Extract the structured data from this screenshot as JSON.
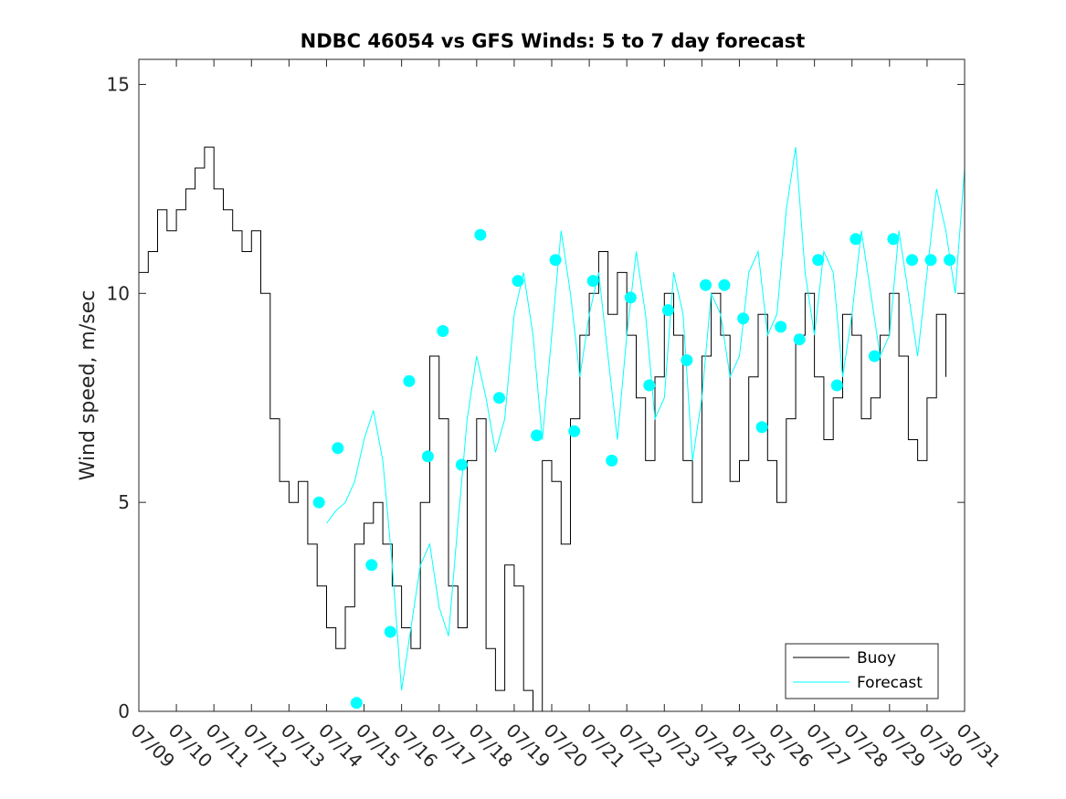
{
  "chart_data": {
    "type": "line",
    "title": "NDBC 46054 vs GFS Winds: 5 to 7 day forecast",
    "xlabel": "",
    "ylabel": "Wind speed, m/sec",
    "xlim": [
      0,
      22
    ],
    "ylim": [
      0,
      15.6
    ],
    "yticks": [
      0,
      5,
      10,
      15
    ],
    "ytick_labels": [
      "0",
      "5",
      "10",
      "15"
    ],
    "xtick_labels": [
      "07/09",
      "07/10",
      "07/11",
      "07/12",
      "07/13",
      "07/14",
      "07/15",
      "07/16",
      "07/17",
      "07/18",
      "07/19",
      "07/20",
      "07/21",
      "07/22",
      "07/23",
      "07/24",
      "07/25",
      "07/26",
      "07/27",
      "07/28",
      "07/29",
      "07/30",
      "07/31"
    ],
    "grid": false,
    "legend_position": "bottom-right",
    "colors": {
      "buoy": "#000000",
      "forecast": "#00ffff",
      "markers": "#00ffff"
    },
    "series": [
      {
        "name": "Buoy",
        "x": [
          0.0,
          0.25,
          0.5,
          0.75,
          1.0,
          1.25,
          1.5,
          1.75,
          2.0,
          2.25,
          2.5,
          2.75,
          3.0,
          3.25,
          3.5,
          3.75,
          4.0,
          4.25,
          4.5,
          4.75,
          5.0,
          5.25,
          5.5,
          5.75,
          6.0,
          6.25,
          6.5,
          6.75,
          7.0,
          7.25,
          7.5,
          7.75,
          8.0,
          8.25,
          8.5,
          8.75,
          9.0,
          9.25,
          9.5,
          9.75,
          10.0,
          10.25,
          10.5,
          10.75,
          11.0,
          11.25,
          11.5,
          11.75,
          12.0,
          12.25,
          12.5,
          12.75,
          13.0,
          13.25,
          13.5,
          13.75,
          14.0,
          14.25,
          14.5,
          14.75,
          15.0,
          15.25,
          15.5,
          15.75,
          16.0,
          16.25,
          16.5,
          16.75,
          17.0,
          17.25,
          17.5,
          17.75,
          18.0,
          18.25,
          18.5,
          18.75,
          19.0,
          19.25,
          19.5,
          19.75,
          20.0,
          20.25,
          20.5,
          20.75,
          21.0,
          21.25,
          21.5
        ],
        "values": [
          10.5,
          11.0,
          12.0,
          11.5,
          12.0,
          12.5,
          13.0,
          13.5,
          12.5,
          12.0,
          11.5,
          11.0,
          11.5,
          10.0,
          7.0,
          5.5,
          5.0,
          5.5,
          4.0,
          3.0,
          2.0,
          1.5,
          2.5,
          4.0,
          4.5,
          5.0,
          4.0,
          3.0,
          2.0,
          1.5,
          5.0,
          8.5,
          7.0,
          3.0,
          2.0,
          6.0,
          7.0,
          1.5,
          0.5,
          3.5,
          3.0,
          0.5,
          0.0,
          6.0,
          5.5,
          4.0,
          7.0,
          9.0,
          10.0,
          11.0,
          9.5,
          10.5,
          9.0,
          7.5,
          6.0,
          8.0,
          10.0,
          9.0,
          6.0,
          5.0,
          8.5,
          10.0,
          9.0,
          5.5,
          6.0,
          8.0,
          9.5,
          6.0,
          5.0,
          7.0,
          9.0,
          10.0,
          8.0,
          6.5,
          7.5,
          9.5,
          9.0,
          7.0,
          7.5,
          9.0,
          10.0,
          8.5,
          6.5,
          6.0,
          7.5,
          9.5,
          8.0
        ]
      },
      {
        "name": "Forecast",
        "x": [
          5.0,
          5.25,
          5.5,
          5.75,
          6.0,
          6.25,
          6.5,
          6.75,
          7.0,
          7.25,
          7.5,
          7.75,
          8.0,
          8.25,
          8.5,
          8.75,
          9.0,
          9.25,
          9.5,
          9.75,
          10.0,
          10.25,
          10.5,
          10.75,
          11.0,
          11.25,
          11.5,
          11.75,
          12.0,
          12.25,
          12.5,
          12.75,
          13.0,
          13.25,
          13.5,
          13.75,
          14.0,
          14.25,
          14.5,
          14.75,
          15.0,
          15.25,
          15.5,
          15.75,
          16.0,
          16.25,
          16.5,
          16.75,
          17.0,
          17.25,
          17.5,
          17.75,
          18.0,
          18.25,
          18.5,
          18.75,
          19.0,
          19.25,
          19.5,
          19.75,
          20.0,
          20.25,
          20.5,
          20.75,
          21.0,
          21.25,
          21.5,
          21.75,
          22.0
        ],
        "values": [
          4.5,
          4.8,
          5.0,
          5.5,
          6.5,
          7.2,
          6.0,
          3.5,
          0.5,
          2.0,
          3.5,
          4.0,
          2.5,
          1.8,
          4.5,
          7.0,
          8.5,
          7.5,
          6.2,
          7.0,
          9.5,
          10.5,
          9.0,
          6.5,
          9.0,
          11.5,
          10.0,
          8.0,
          9.5,
          10.5,
          8.5,
          6.5,
          9.0,
          11.0,
          9.5,
          7.0,
          7.5,
          10.5,
          9.5,
          6.0,
          7.5,
          10.0,
          9.5,
          8.0,
          8.5,
          10.5,
          11.0,
          9.0,
          9.5,
          12.0,
          13.5,
          10.5,
          9.0,
          11.0,
          10.5,
          8.0,
          9.5,
          11.5,
          10.0,
          8.5,
          9.0,
          11.5,
          10.0,
          8.5,
          10.5,
          12.5,
          11.5,
          10.0,
          13.0
        ]
      },
      {
        "name": "Forecast points",
        "x": [
          4.8,
          5.3,
          5.8,
          6.2,
          6.7,
          7.2,
          7.7,
          8.1,
          8.6,
          9.1,
          9.6,
          10.1,
          10.6,
          11.1,
          11.6,
          12.1,
          12.6,
          13.1,
          13.6,
          14.1,
          14.6,
          15.1,
          15.6,
          16.1,
          16.6,
          17.1,
          17.6,
          18.1,
          18.6,
          19.1,
          19.6,
          20.1,
          20.6,
          21.1,
          21.6
        ],
        "values": [
          5.0,
          6.3,
          0.2,
          3.5,
          1.9,
          7.9,
          6.1,
          9.1,
          5.9,
          11.4,
          7.5,
          10.3,
          6.6,
          10.8,
          6.7,
          10.3,
          6.0,
          9.9,
          7.8,
          9.6,
          8.4,
          10.2,
          10.2,
          9.4,
          6.8,
          9.2,
          8.9,
          10.8,
          7.8,
          11.3,
          8.5,
          11.3,
          10.8,
          10.8,
          10.8
        ]
      }
    ]
  }
}
